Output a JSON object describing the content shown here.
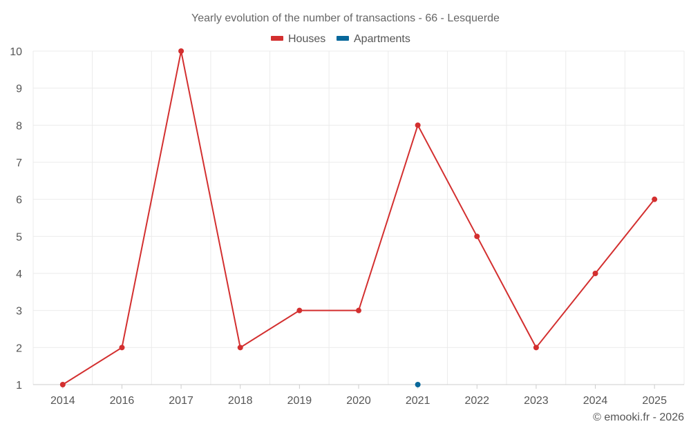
{
  "chart_data": {
    "type": "line",
    "title": "Yearly evolution of the number of transactions - 66 - Lesquerde",
    "categories": [
      "2014",
      "2016",
      "2017",
      "2018",
      "2019",
      "2020",
      "2021",
      "2022",
      "2023",
      "2024",
      "2025"
    ],
    "series": [
      {
        "name": "Houses",
        "color": "#d32f2f",
        "values": [
          1,
          2,
          10,
          2,
          3,
          3,
          8,
          5,
          2,
          4,
          6
        ]
      },
      {
        "name": "Apartments",
        "color": "#08689b",
        "values": [
          null,
          null,
          null,
          null,
          null,
          null,
          1,
          null,
          null,
          null,
          null
        ]
      }
    ],
    "y_ticks": [
      1,
      2,
      3,
      4,
      5,
      6,
      7,
      8,
      9,
      10
    ],
    "ylim": [
      1,
      10
    ],
    "xlabel": "",
    "ylabel": "",
    "grid": true,
    "legend_position": "top-center"
  },
  "credit": "© emooki.fr - 2026"
}
